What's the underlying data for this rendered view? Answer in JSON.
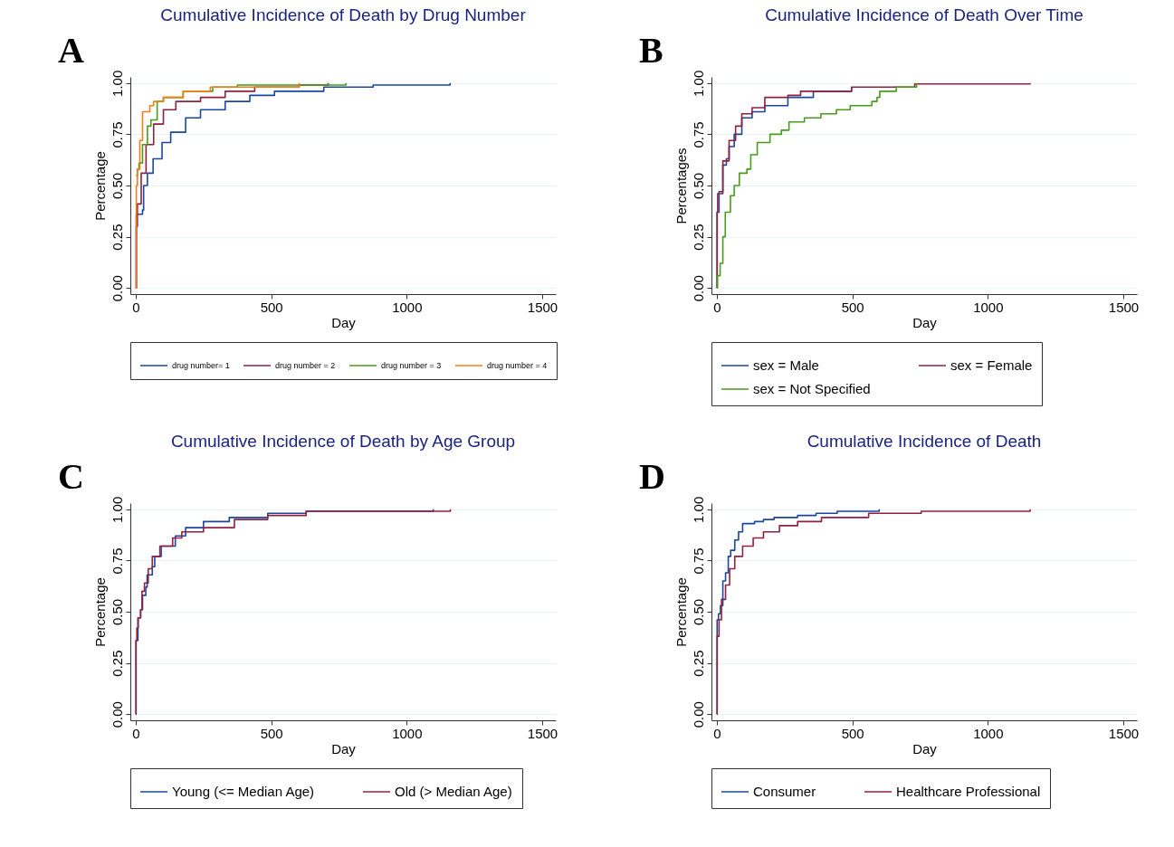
{
  "chart_data": [
    {
      "type": "step",
      "title": "Cumulative Incidence of Death by Drug Number",
      "xlabel": "Day",
      "ylabel": "Percentage",
      "annotations": [
        "A"
      ],
      "grid": "y",
      "legend": "bottom",
      "xlim": [
        -20,
        1550
      ],
      "xticks": [
        0,
        500,
        1000,
        1500
      ],
      "ylim": [
        -0.03,
        1.03
      ],
      "yticks": [
        {
          "value": 0,
          "label": "0.00"
        },
        {
          "value": 0.25,
          "label": "0.25"
        },
        {
          "value": 0.5,
          "label": "0.50"
        },
        {
          "value": 0.75,
          "label": "0.75"
        },
        {
          "value": 1,
          "label": "1.00"
        }
      ],
      "series": [
        {
          "name": "drug number= 1",
          "color": "#1a46a0",
          "x": [
            0,
            2,
            25,
            29,
            43,
            64,
            97,
            129,
            184,
            239,
            330,
            421,
            512,
            694,
            876,
            1160
          ],
          "values": [
            0,
            0.36,
            0.38,
            0.5,
            0.56,
            0.63,
            0.71,
            0.76,
            0.83,
            0.87,
            0.91,
            0.94,
            0.96,
            0.98,
            0.99,
            1.0
          ]
        },
        {
          "name": "drug number = 2",
          "color": "#90213f",
          "x": [
            0,
            2,
            6,
            20,
            38,
            66,
            102,
            148,
            239,
            330,
            439,
            603,
            710
          ],
          "values": [
            0,
            0.3,
            0.41,
            0.56,
            0.7,
            0.8,
            0.87,
            0.91,
            0.93,
            0.96,
            0.98,
            0.99,
            1.0
          ]
        },
        {
          "name": "drug number = 3",
          "color": "#4a9a1c",
          "x": [
            1,
            6,
            12,
            25,
            43,
            56,
            79,
            102,
            175,
            284,
            375,
            776
          ],
          "values": [
            0.55,
            0.58,
            0.61,
            0.7,
            0.79,
            0.82,
            0.91,
            0.93,
            0.96,
            0.98,
            0.99,
            1.0
          ]
        },
        {
          "name": "drug number = 4",
          "color": "#f07f18",
          "x": [
            0,
            2,
            6,
            15,
            25,
            52,
            66,
            102,
            175,
            275,
            603
          ],
          "values": [
            0,
            0.5,
            0.58,
            0.72,
            0.86,
            0.89,
            0.91,
            0.93,
            0.96,
            0.98,
            1.0
          ]
        }
      ]
    },
    {
      "type": "step",
      "title": "Cumulative Incidence of Death Over Time",
      "xlabel": "Day",
      "ylabel": "Percentages",
      "annotations": [
        "B"
      ],
      "grid": "y",
      "legend": "bottom",
      "xlim": [
        -20,
        1550
      ],
      "xticks": [
        0,
        500,
        1000,
        1500
      ],
      "ylim": [
        -0.03,
        1.03
      ],
      "yticks": [
        {
          "value": 0,
          "label": "0.00"
        },
        {
          "value": 0.25,
          "label": "0.25"
        },
        {
          "value": 0.5,
          "label": "0.50"
        },
        {
          "value": 0.75,
          "label": "0.75"
        },
        {
          "value": 1,
          "label": "1.00"
        }
      ],
      "series": [
        {
          "name": "sex = Male",
          "color": "#1a46a0",
          "x": [
            0,
            1,
            8,
            22,
            35,
            45,
            64,
            92,
            130,
            177,
            262,
            356,
            497
          ],
          "values": [
            0,
            0.37,
            0.47,
            0.6,
            0.63,
            0.69,
            0.75,
            0.83,
            0.86,
            0.89,
            0.93,
            0.96,
            0.98
          ]
        },
        {
          "name": "sex = Female",
          "color": "#90213f",
          "x": [
            0,
            1,
            3,
            22,
            45,
            69,
            92,
            130,
            177,
            262,
            309,
            497,
            730,
            1156
          ],
          "values": [
            0,
            0.37,
            0.46,
            0.62,
            0.72,
            0.79,
            0.85,
            0.88,
            0.93,
            0.94,
            0.96,
            0.98,
            0.996,
            1.0
          ]
        },
        {
          "name": "sex = Not Specified",
          "color": "#4a9a1c",
          "x": [
            0,
            2,
            12,
            22,
            31,
            50,
            64,
            83,
            111,
            125,
            149,
            196,
            238,
            266,
            323,
            384,
            441,
            492,
            572,
            591,
            601,
            662,
            737
          ],
          "values": [
            0,
            0.06,
            0.12,
            0.25,
            0.37,
            0.45,
            0.5,
            0.56,
            0.58,
            0.65,
            0.71,
            0.75,
            0.77,
            0.81,
            0.83,
            0.85,
            0.87,
            0.89,
            0.91,
            0.93,
            0.96,
            0.98,
            1.0
          ]
        }
      ]
    },
    {
      "type": "step",
      "title": "Cumulative Incidence of Death by Age Group",
      "xlabel": "Day",
      "ylabel": "Percentage",
      "annotations": [
        "C"
      ],
      "grid": "y",
      "legend": "bottom",
      "xlim": [
        -20,
        1550
      ],
      "xticks": [
        0,
        500,
        1000,
        1500
      ],
      "ylim": [
        -0.03,
        1.03
      ],
      "yticks": [
        {
          "value": 0,
          "label": "0.00"
        },
        {
          "value": 0.25,
          "label": "0.25"
        },
        {
          "value": 0.5,
          "label": "0.50"
        },
        {
          "value": 0.75,
          "label": "0.75"
        },
        {
          "value": 1,
          "label": "1.00"
        }
      ],
      "series": [
        {
          "name": "Young (<= Median Age)",
          "color": "#1a46a0",
          "x": [
            0,
            1,
            8,
            18,
            25,
            37,
            42,
            61,
            70,
            94,
            146,
            184,
            250,
            345,
            487,
            629,
            1098
          ],
          "values": [
            0,
            0.36,
            0.47,
            0.51,
            0.58,
            0.62,
            0.68,
            0.72,
            0.77,
            0.82,
            0.87,
            0.91,
            0.94,
            0.96,
            0.98,
            0.99,
            1.0
          ]
        },
        {
          "name": "Old (> Median Age)",
          "color": "#90213f",
          "x": [
            0,
            1,
            4,
            9,
            18,
            23,
            32,
            46,
            61,
            89,
            136,
            170,
            250,
            364,
            487,
            629,
            1161
          ],
          "values": [
            0,
            0.36,
            0.42,
            0.47,
            0.51,
            0.6,
            0.64,
            0.71,
            0.77,
            0.82,
            0.86,
            0.89,
            0.91,
            0.95,
            0.97,
            0.99,
            1.0
          ]
        }
      ]
    },
    {
      "type": "step",
      "title": "Cumulative Incidence of Death",
      "xlabel": "Day",
      "ylabel": "Percentage",
      "annotations": [
        "D"
      ],
      "grid": "y",
      "legend": "bottom",
      "xlim": [
        -20,
        1550
      ],
      "xticks": [
        0,
        500,
        1000,
        1500
      ],
      "ylim": [
        -0.03,
        1.03
      ],
      "yticks": [
        {
          "value": 0,
          "label": "0.00"
        },
        {
          "value": 0.25,
          "label": "0.25"
        },
        {
          "value": 0.5,
          "label": "0.50"
        },
        {
          "value": 0.75,
          "label": "0.75"
        },
        {
          "value": 1,
          "label": "1.00"
        }
      ],
      "series": [
        {
          "name": "Consumer",
          "color": "#1a46a0",
          "x": [
            0,
            1,
            6,
            13,
            22,
            32,
            42,
            51,
            66,
            80,
            95,
            139,
            172,
            211,
            298,
            366,
            444,
            599
          ],
          "values": [
            0,
            0.46,
            0.49,
            0.53,
            0.65,
            0.69,
            0.77,
            0.8,
            0.85,
            0.89,
            0.93,
            0.94,
            0.95,
            0.96,
            0.97,
            0.98,
            0.99,
            1.0
          ]
        },
        {
          "name": "Healthcare Professional",
          "color": "#90213f",
          "x": [
            0,
            1,
            8,
            17,
            32,
            47,
            66,
            95,
            134,
            172,
            231,
            298,
            386,
            560,
            754,
            1156
          ],
          "values": [
            0,
            0.38,
            0.46,
            0.56,
            0.63,
            0.71,
            0.77,
            0.82,
            0.86,
            0.89,
            0.92,
            0.94,
            0.96,
            0.98,
            0.99,
            1.0
          ]
        }
      ]
    }
  ]
}
